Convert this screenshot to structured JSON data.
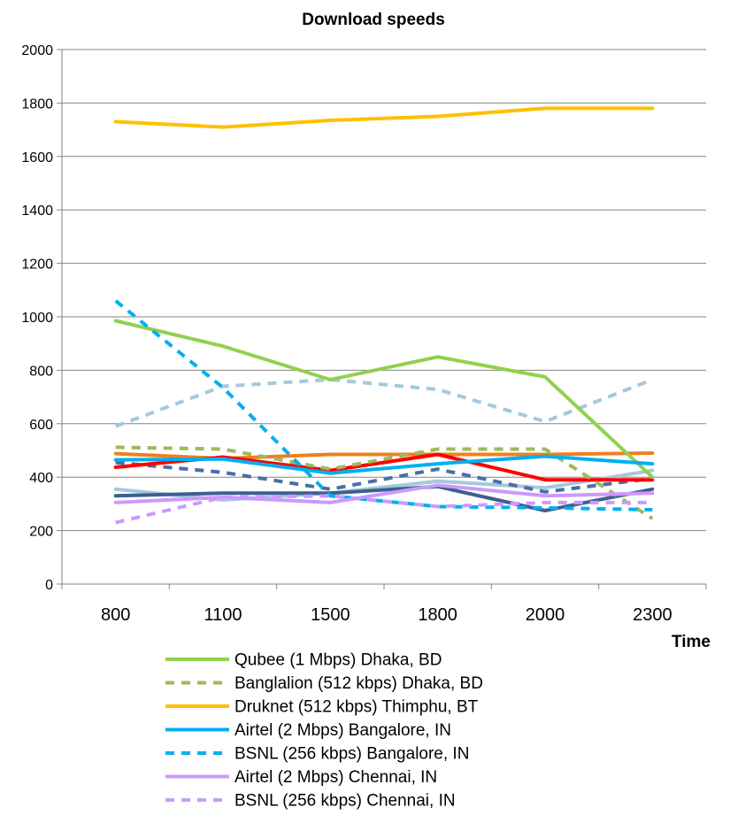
{
  "chart_data": {
    "type": "line",
    "title": "Download speeds",
    "xlabel": "Time",
    "ylabel": "",
    "categories": [
      "800",
      "1100",
      "1500",
      "1800",
      "2000",
      "2300"
    ],
    "ylim": [
      0,
      2000
    ],
    "yticks": [
      "0",
      "200",
      "400",
      "600",
      "800",
      "1000",
      "1200",
      "1400",
      "1600",
      "1800",
      "2000"
    ],
    "grid": "horizontal",
    "legend_position": "bottom",
    "series": [
      {
        "name": "Qubee (1 Mbps) Dhaka, BD",
        "values": [
          985,
          890,
          765,
          850,
          775,
          400
        ],
        "color": "#92d050",
        "dashed": false,
        "in_legend": true
      },
      {
        "name": "Banglalion (512 kbps) Dhaka, BD",
        "values": [
          512,
          505,
          430,
          505,
          505,
          245
        ],
        "color": "#9bbb59",
        "dashed": true,
        "in_legend": true
      },
      {
        "name": "Druknet (512 kbps) Thimphu, BT",
        "values": [
          1730,
          1710,
          1735,
          1750,
          1780,
          1780
        ],
        "color": "#ffc000",
        "dashed": false,
        "in_legend": true
      },
      {
        "name": "Airtel (2 Mbps) Bangalore, IN",
        "values": [
          465,
          468,
          415,
          450,
          478,
          450
        ],
        "color": "#00b0f0",
        "dashed": false,
        "in_legend": true
      },
      {
        "name": "BSNL (256 kbps) Bangalore, IN",
        "values": [
          1060,
          735,
          330,
          290,
          285,
          278
        ],
        "color": "#00b0f0",
        "dashed": true,
        "in_legend": true
      },
      {
        "name": "Airtel (2 Mbps) Chennai, IN",
        "values": [
          305,
          325,
          305,
          370,
          330,
          340
        ],
        "color": "#cc99ff",
        "dashed": false,
        "in_legend": true
      },
      {
        "name": "BSNL (256 kbps) Chennai, IN",
        "values": [
          230,
          325,
          330,
          290,
          305,
          305
        ],
        "color": "#cc99ff",
        "dashed": true,
        "in_legend": true
      },
      {
        "name": "",
        "values": [
          590,
          740,
          765,
          728,
          608,
          765
        ],
        "color": "#a5c8dc",
        "dashed": true,
        "in_legend": false
      },
      {
        "name": "",
        "values": [
          355,
          315,
          340,
          385,
          360,
          425
        ],
        "color": "#a5c8dc",
        "dashed": false,
        "in_legend": false
      },
      {
        "name": "",
        "values": [
          455,
          418,
          355,
          430,
          345,
          395
        ],
        "color": "#4a6fa5",
        "dashed": true,
        "in_legend": false
      },
      {
        "name": "",
        "values": [
          330,
          340,
          340,
          365,
          275,
          355
        ],
        "color": "#3f5f8f",
        "dashed": false,
        "in_legend": false
      },
      {
        "name": "",
        "values": [
          488,
          470,
          485,
          485,
          485,
          490
        ],
        "color": "#f07f1e",
        "dashed": false,
        "in_legend": false
      },
      {
        "name": "",
        "values": [
          437,
          475,
          425,
          485,
          390,
          390
        ],
        "color": "#ff0000",
        "dashed": false,
        "in_legend": false
      }
    ]
  }
}
